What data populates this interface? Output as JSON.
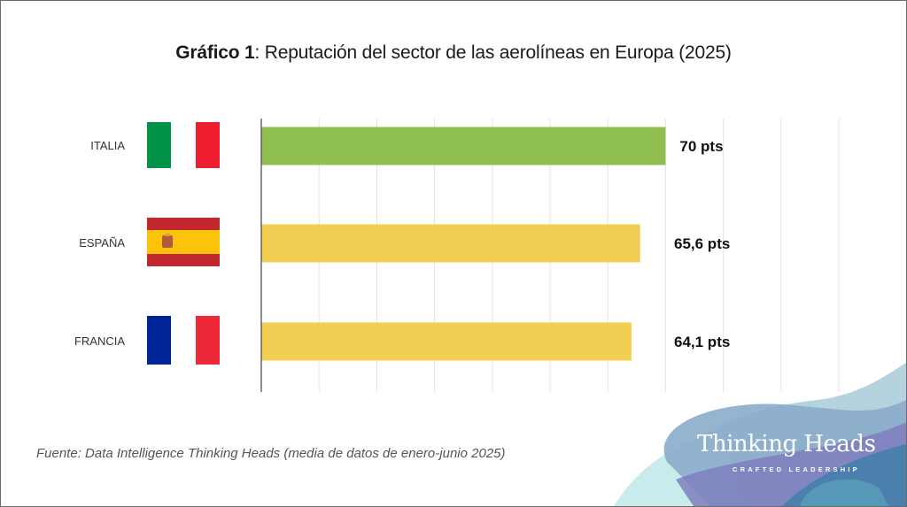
{
  "chart_data": {
    "type": "bar",
    "orientation": "horizontal",
    "title_bold": "Gráfico 1",
    "title_rest": ": Reputación del sector de las aerolíneas en Europa (2025)",
    "categories": [
      "ITALIA",
      "ESPAÑA",
      "FRANCIA"
    ],
    "values": [
      70,
      65.6,
      64.1
    ],
    "value_labels": [
      "70 pts",
      "65,6 pts",
      "64,1 pts"
    ],
    "bar_colors": [
      "#8fbf50",
      "#f2cf52",
      "#f2cf52"
    ],
    "flags": [
      "italy-flag",
      "spain-flag",
      "france-flag"
    ],
    "xlabel": "",
    "ylabel": "",
    "xlim": [
      0,
      100
    ],
    "grid_step": 10,
    "grid": true,
    "tick_labels_shown": false,
    "legend": "none"
  },
  "source": "Fuente: Data Intelligence Thinking Heads (media de datos de enero-junio 2025)",
  "logo": {
    "name": "Thinking Heads",
    "tagline": "CRAFTED LEADERSHIP"
  }
}
